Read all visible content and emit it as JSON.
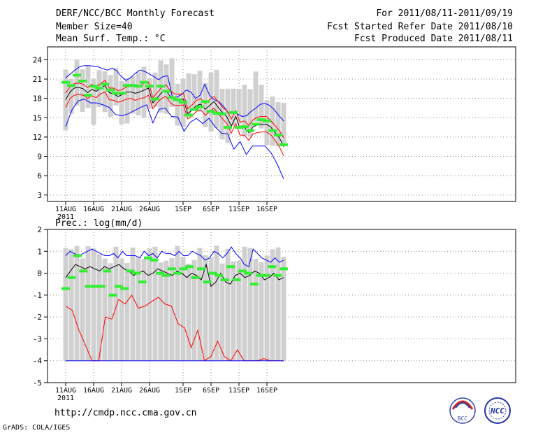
{
  "header": {
    "title": "DERF/NCC/BCC Monthly Forecast",
    "member_size": "Member Size=40",
    "variable": "Mean Surf. Temp.: °C",
    "for_range": "For 2011/08/11-2011/09/19",
    "started": "Fcst Started Refer Date 2011/08/10",
    "produced": "Fcst Produced Date 2011/08/11"
  },
  "footer": {
    "url": "http://cmdp.ncc.cma.gov.cn",
    "grads": "GrADS: COLA/IGES",
    "logo_bcc": "BCC",
    "logo_ncc": "NCC"
  },
  "colors": {
    "upper": "#0000ff",
    "mean": "#000000",
    "spread": "#ff0000",
    "obs": "#33ee33",
    "box": "#d0d0d0"
  },
  "chart_data": [
    {
      "type": "line",
      "title": "Mean Surf. Temp.: °C",
      "x_tick_labels": [
        "11AUG",
        "16AUG",
        "21AUG",
        "26AUG",
        "1SEP",
        "6SEP",
        "11SEP",
        "16SEP"
      ],
      "x_tick_days": [
        0,
        5,
        10,
        15,
        21,
        26,
        31,
        36
      ],
      "year_label": "2011",
      "ylim": [
        2,
        26
      ],
      "y_ticks": [
        3,
        6,
        9,
        12,
        15,
        18,
        21,
        24
      ],
      "days": 40,
      "series": [
        {
          "name": "upper",
          "color": "#0000ff",
          "values": [
            21.2,
            21.8,
            22.4,
            22.9,
            23.1,
            23.1,
            23.0,
            22.9,
            22.6,
            22.4,
            22.7,
            22.3,
            21.4,
            20.8,
            21.2,
            21.9,
            22.4,
            22.2,
            21.8,
            21.4,
            20.9,
            21.4,
            21.5,
            18.2,
            18.2,
            18.6,
            19.3,
            19.0,
            18.0,
            18.5,
            20.2,
            18.5,
            17.8,
            17.5,
            16.8,
            15.8,
            15.7,
            15.6,
            15.2,
            15.3,
            16.0,
            16.5,
            17.1,
            17.2,
            16.9,
            16.2,
            15.3,
            14.5
          ]
        },
        {
          "name": "spread_high",
          "color": "#ff0000",
          "values": [
            18.8,
            19.8,
            20.3,
            20.4,
            20.2,
            19.7,
            20.2,
            19.7,
            20.3,
            20.8,
            19.6,
            19.6,
            19.2,
            19.4,
            19.8,
            19.9,
            19.8,
            19.9,
            20.4,
            20.5,
            18.1,
            18.9,
            19.7,
            20.1,
            19.2,
            18.7,
            18.6,
            18.8,
            16.4,
            17.0,
            17.7,
            18.0,
            17.2,
            17.8,
            18.3,
            17.5,
            16.6,
            16.1,
            14.8,
            16.1,
            14.3,
            14.5,
            13.8,
            14.7,
            15.1,
            15.2,
            15.2,
            14.6,
            13.8,
            13.0,
            11.9
          ]
        },
        {
          "name": "mean",
          "color": "#000000",
          "values": [
            17.8,
            19.0,
            19.6,
            19.7,
            19.5,
            18.9,
            19.4,
            19.1,
            19.6,
            20.0,
            18.9,
            18.7,
            18.3,
            18.6,
            19.0,
            19.0,
            18.8,
            19.0,
            19.3,
            19.6,
            17.3,
            18.1,
            18.9,
            19.2,
            18.3,
            17.8,
            17.8,
            17.9,
            15.6,
            16.2,
            16.9,
            17.1,
            16.3,
            16.9,
            17.5,
            16.6,
            15.8,
            15.1,
            13.7,
            15.2,
            13.3,
            13.5,
            12.7,
            13.6,
            13.9,
            14.0,
            14.0,
            13.6,
            12.7,
            11.9,
            10.5
          ]
        },
        {
          "name": "spread_low",
          "color": "#ff0000",
          "values": [
            16.6,
            18.0,
            18.5,
            18.6,
            18.5,
            18.0,
            18.4,
            18.1,
            18.7,
            19.0,
            17.8,
            17.7,
            17.4,
            17.6,
            17.9,
            18.0,
            17.7,
            18.0,
            18.1,
            18.5,
            16.4,
            17.3,
            18.0,
            18.3,
            17.3,
            16.9,
            16.9,
            17.0,
            14.8,
            15.3,
            16.0,
            16.2,
            15.4,
            15.9,
            16.5,
            15.6,
            14.8,
            14.1,
            12.6,
            14.1,
            12.3,
            12.3,
            11.5,
            12.5,
            12.7,
            12.8,
            12.8,
            12.4,
            11.5,
            10.5,
            9.1
          ]
        },
        {
          "name": "lower",
          "color": "#0000ff",
          "values": [
            13.6,
            16.2,
            17.6,
            17.9,
            17.3,
            17.3,
            17.0,
            16.6,
            15.5,
            15.3,
            15.6,
            16.1,
            16.6,
            17.0,
            14.2,
            16.3,
            16.5,
            15.2,
            15.1,
            12.9,
            14.3,
            14.9,
            14.1,
            14.9,
            13.6,
            12.6,
            12.5,
            10.1,
            11.3,
            9.3,
            10.6,
            10.6,
            10.6,
            9.5,
            7.7,
            5.5
          ]
        },
        {
          "name": "observed",
          "color": "#33ee33",
          "values": [
            20.5,
            20.0,
            21.6,
            20.7,
            18.5,
            19.9,
            19.6,
            20.2,
            19.3,
            18.8,
            18.8,
            20.0,
            20.0,
            19.9,
            20.5,
            19.9,
            17.9,
            19.9,
            19.1,
            18.1,
            17.8,
            17.4,
            15.4,
            16.3,
            16.7,
            17.5,
            16.0,
            15.7,
            15.6,
            13.5,
            15.8,
            13.5,
            13.6,
            13.0,
            14.0,
            14.7,
            14.5,
            13.0,
            12.3,
            10.8
          ]
        }
      ]
    },
    {
      "type": "line",
      "title": "Prec.: log(mm/d)",
      "x_tick_labels": [
        "11AUG",
        "16AUG",
        "21AUG",
        "26AUG",
        "1SEP",
        "6SEP",
        "11SEP",
        "16SEP"
      ],
      "x_tick_days": [
        0,
        5,
        10,
        15,
        21,
        26,
        31,
        36
      ],
      "year_label": "2011",
      "ylim": [
        -5,
        2
      ],
      "y_ticks": [
        -5,
        -4,
        -3,
        -2,
        -1,
        0,
        1,
        2
      ],
      "days": 40,
      "series": [
        {
          "name": "upper",
          "color": "#0000ff",
          "values": [
            0.8,
            1.0,
            0.9,
            0.8,
            0.9,
            1.0,
            1.1,
            1.0,
            0.9,
            0.8,
            0.8,
            0.9,
            0.7,
            1.0,
            0.8,
            0.8,
            0.8,
            0.7,
            1.0,
            0.8,
            0.9,
            0.7,
            1.0,
            0.9,
            0.9,
            0.8,
            1.0,
            0.8,
            0.8,
            1.0,
            0.9,
            0.8,
            0.6,
            0.7,
            1.0,
            0.9,
            0.7,
            0.9,
            1.2,
            0.9,
            0.7,
            0.4,
            0.3,
            1.1,
            0.9,
            0.7,
            0.6,
            0.5,
            0.7,
            0.5,
            0.6
          ]
        },
        {
          "name": "mean",
          "color": "#000000",
          "values": [
            -0.2,
            0.1,
            0.4,
            0.3,
            0.2,
            0.3,
            0.2,
            0.1,
            0.3,
            0.2,
            0.3,
            0.4,
            0.2,
            0.1,
            -0.1,
            0.0,
            0.1,
            -0.1,
            0.0,
            0.2,
            0.1,
            0.0,
            -0.1,
            0.1,
            0.0,
            -0.2,
            0.0,
            -0.1,
            -0.3,
            0.4,
            -0.6,
            -0.4,
            0.0,
            -0.4,
            -0.5,
            -0.1,
            0.0,
            -0.2,
            -0.1,
            0.1,
            0.0,
            -0.3,
            -0.2,
            0.0,
            -0.3,
            -0.2
          ]
        },
        {
          "name": "low",
          "color": "#ff0000",
          "values": [
            -1.5,
            -1.7,
            -2.6,
            -3.3,
            -4.0,
            -4.0,
            -2.0,
            -2.1,
            -1.2,
            -1.4,
            -1.0,
            -1.6,
            -1.5,
            -1.3,
            -1.1,
            -1.4,
            -1.5,
            -2.3,
            -2.5,
            -3.4,
            -2.6,
            -4.0,
            -3.8,
            -3.1,
            -3.8,
            -4.0,
            -3.5,
            -4.0,
            -4.0,
            -4.0,
            -3.9,
            -4.0,
            -4.0,
            -4.0
          ]
        },
        {
          "name": "observed",
          "color": "#33ee33",
          "values": [
            -0.7,
            -0.2,
            0.8,
            0.1,
            -0.6,
            -0.6,
            -0.6,
            0.1,
            -1.0,
            -0.6,
            -0.7,
            0.1,
            0.0,
            -0.4,
            0.7,
            0.6,
            0.0,
            -0.1,
            0.2,
            0.0,
            0.2,
            0.3,
            -0.2,
            0.2,
            -0.4,
            0.0,
            -0.1,
            -0.3,
            0.3,
            -0.3,
            0.1,
            0.0,
            -0.5,
            -0.1,
            -0.1,
            0.3,
            -0.1,
            0.2
          ]
        }
      ]
    }
  ]
}
